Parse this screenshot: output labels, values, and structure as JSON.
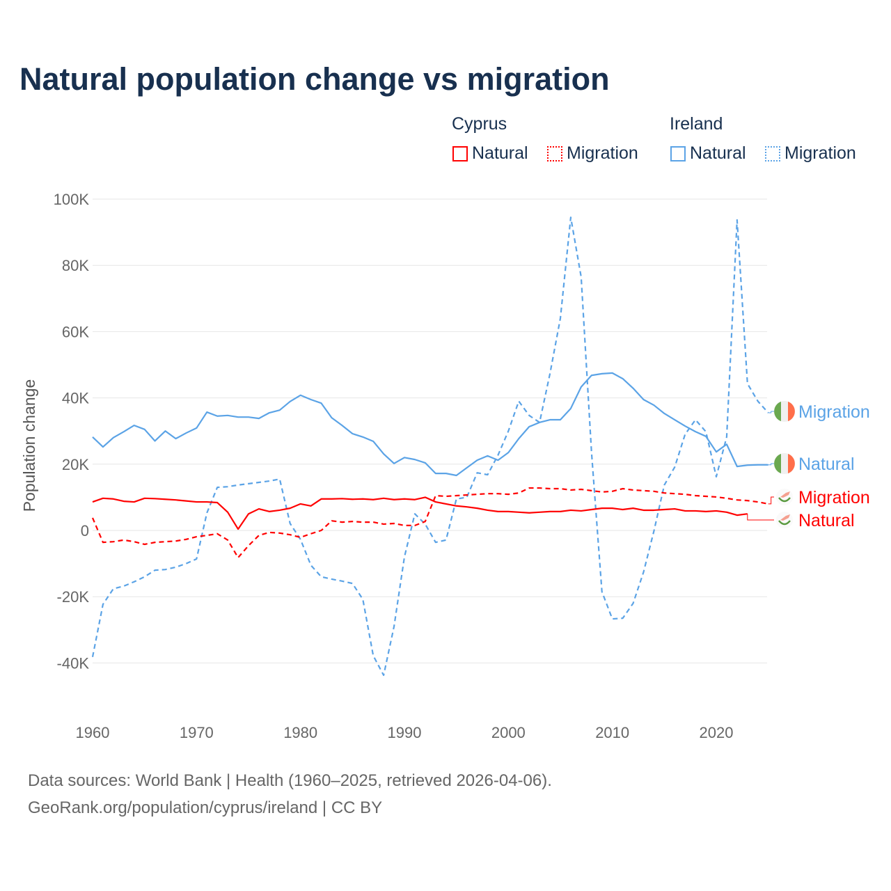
{
  "chart_data": {
    "type": "line",
    "title": "Natural population change vs migration",
    "xlabel": "",
    "ylabel": "Population change",
    "xlim": [
      1960,
      2025
    ],
    "ylim": [
      -50000,
      100000
    ],
    "x_ticks": [
      1960,
      1970,
      1980,
      1990,
      2000,
      2010,
      2020
    ],
    "x_tick_labels": [
      "1960",
      "1970",
      "1980",
      "1990",
      "2000",
      "2010",
      "2020"
    ],
    "y_ticks": [
      -40000,
      -20000,
      0,
      20000,
      40000,
      60000,
      80000,
      100000
    ],
    "y_tick_labels": [
      "-40K",
      "-20K",
      "0",
      "20K",
      "40K",
      "60K",
      "80K",
      "100K"
    ],
    "grid": true,
    "legend": {
      "placement": "top-right",
      "groups": [
        {
          "name": "Cyprus",
          "items": [
            "Natural",
            "Migration"
          ]
        },
        {
          "name": "Ireland",
          "items": [
            "Natural",
            "Migration"
          ]
        }
      ]
    },
    "series": [
      {
        "name": "Ireland Natural",
        "label": "Natural",
        "country": "Ireland",
        "color": "#5ba3e6",
        "dash": false,
        "start_year": 1960,
        "values": [
          28.2,
          25.2,
          28,
          29.8,
          31.7,
          30.5,
          27,
          30,
          27.7,
          29.4,
          30.9,
          35.7,
          34.5,
          34.7,
          34.2,
          34.2,
          33.8,
          35.5,
          36.3,
          38.9,
          40.8,
          39.5,
          38.4,
          34,
          31.7,
          29.2,
          28.2,
          26.9,
          23.1,
          20.2,
          22,
          21.4,
          20.4,
          17.2,
          17.2,
          16.6,
          18.9,
          21.2,
          22.5,
          21.2,
          23.5,
          27.7,
          31.3,
          32.6,
          33.4,
          33.4,
          36.8,
          43.3,
          46.8,
          47.3,
          47.5,
          45.8,
          42.9,
          39.5,
          37.8,
          35.3,
          33.4,
          31.5,
          29.8,
          28.4,
          23.7,
          26,
          19.3,
          19.7,
          19.8,
          19.8
        ]
      },
      {
        "name": "Ireland Migration",
        "label": "Migration",
        "country": "Ireland",
        "color": "#5ba3e6",
        "dash": true,
        "start_year": 1960,
        "values": [
          -38.2,
          -22.3,
          -17.6,
          -16.8,
          -15.5,
          -14,
          -12,
          -11.8,
          -11.1,
          -10,
          -8.6,
          5.3,
          13,
          13.2,
          13.7,
          14.1,
          14.5,
          14.9,
          15.5,
          2.1,
          -2.7,
          -10.5,
          -14,
          -14.7,
          -15.3,
          -16,
          -20.8,
          -37.8,
          -43.7,
          -29,
          -8,
          5,
          1.9,
          -3.6,
          -2.9,
          9.5,
          10,
          17.4,
          16.8,
          22.7,
          30,
          39,
          34.7,
          32.6,
          47.3,
          64,
          94.5,
          76.5,
          23.5,
          -18.5,
          -26.7,
          -26.5,
          -22,
          -12.6,
          -0.2,
          13.7,
          19.1,
          29,
          33.4,
          29.8,
          16.2,
          28.2,
          93.7,
          44.3,
          39,
          35.5
        ]
      },
      {
        "name": "Cyprus Natural",
        "label": "Natural",
        "country": "Cyprus",
        "color": "#ff0000",
        "dash": false,
        "start_year": 1960,
        "values": [
          8.6,
          9.7,
          9.5,
          8.8,
          8.6,
          9.7,
          9.6,
          9.4,
          9.2,
          8.9,
          8.6,
          8.6,
          8.4,
          5.5,
          0.4,
          5,
          6.5,
          5.7,
          6.1,
          6.7,
          8,
          7.4,
          9.5,
          9.5,
          9.6,
          9.4,
          9.5,
          9.3,
          9.7,
          9.3,
          9.5,
          9.3,
          10,
          8.6,
          8,
          7.4,
          7.1,
          6.7,
          6.1,
          5.7,
          5.7,
          5.5,
          5.3,
          5.5,
          5.7,
          5.7,
          6.1,
          5.9,
          6.3,
          6.7,
          6.7,
          6.3,
          6.7,
          6.1,
          6.1,
          6.3,
          6.5,
          5.9,
          5.9,
          5.7,
          5.9,
          5.5,
          4.6,
          5
        ]
      },
      {
        "name": "Cyprus Migration",
        "label": "Migration",
        "country": "Cyprus",
        "color": "#ff0000",
        "dash": true,
        "start_year": 1960,
        "values": [
          3.8,
          -3.6,
          -3.4,
          -2.9,
          -3.4,
          -4.2,
          -3.6,
          -3.4,
          -3.2,
          -2.7,
          -1.9,
          -1.5,
          -1,
          -2.9,
          -8.2,
          -4.6,
          -1.5,
          -0.6,
          -0.8,
          -1.3,
          -2.1,
          -1,
          0,
          2.9,
          2.5,
          2.7,
          2.5,
          2.5,
          1.9,
          2.1,
          1.5,
          1.5,
          2.7,
          10.5,
          10.3,
          10.5,
          10.7,
          10.9,
          11.1,
          11.1,
          10.9,
          11.3,
          12.8,
          12.8,
          12.6,
          12.6,
          12.2,
          12.4,
          12,
          11.6,
          11.8,
          12.6,
          12.2,
          12,
          11.8,
          11.3,
          11.1,
          10.9,
          10.5,
          10.3,
          10.1,
          9.7,
          9.2,
          9,
          8.6,
          8
        ]
      }
    ],
    "value_unit": "thousands"
  },
  "footer": {
    "line1": "Data sources: World Bank | Health (1960–2025, retrieved 2026-04-06).",
    "line2": "GeoRank.org/population/cyprus/ireland | CC BY"
  },
  "colors": {
    "cyprus": "#ff0000",
    "ireland": "#5ba3e6",
    "grid": "#e6e6e6",
    "title": "#18304f",
    "axis_text": "#666666"
  }
}
